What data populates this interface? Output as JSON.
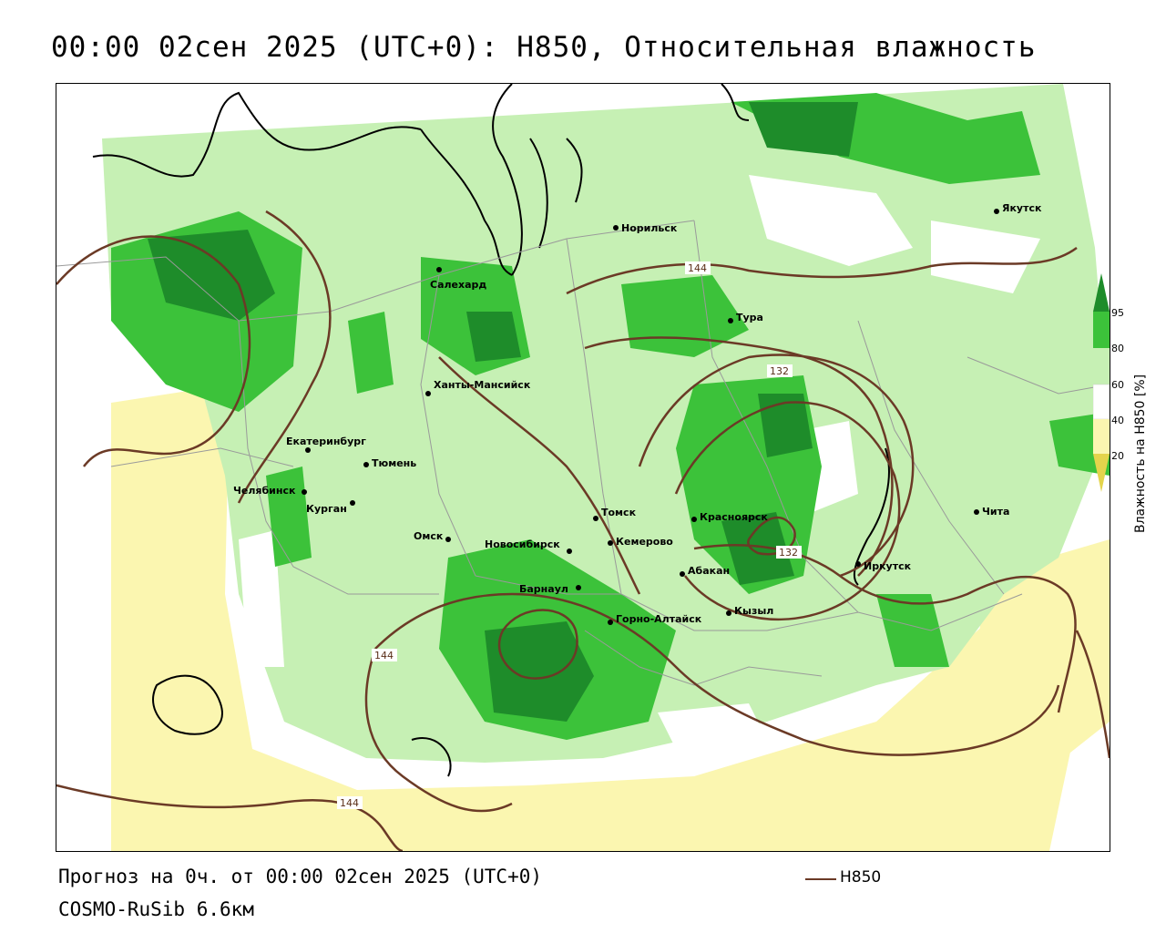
{
  "header": {
    "title": "00:00 02сен 2025 (UTC+0): H850, Относительная влажность"
  },
  "footer": {
    "forecast_line": "Прогноз на 0ч. от 00:00 02сен 2025 (UTC+0)",
    "model_line": "COSMO-RuSib 6.6км",
    "legend_label": "H850"
  },
  "colorbar": {
    "title": "Влажность на H850 [%]",
    "ticks": [
      "95",
      "80",
      "60",
      "40",
      "20"
    ],
    "colors": {
      "c95": "#1e8c2a",
      "c80": "#3cc23a",
      "c60": "#c6f0b4",
      "c40": "#ffffff",
      "c20": "#fbf6b0",
      "c0": "#e4d44c"
    }
  },
  "map": {
    "cities": [
      {
        "name": "Норильск"
      },
      {
        "name": "Якутск"
      },
      {
        "name": "Салехард"
      },
      {
        "name": "Тура"
      },
      {
        "name": "Ханты-Мансийск"
      },
      {
        "name": "Екатеринбург"
      },
      {
        "name": "Тюмень"
      },
      {
        "name": "Челябинск"
      },
      {
        "name": "Курган"
      },
      {
        "name": "Омск"
      },
      {
        "name": "Томск"
      },
      {
        "name": "Новосибирск"
      },
      {
        "name": "Кемерово"
      },
      {
        "name": "Красноярск"
      },
      {
        "name": "Барнаул"
      },
      {
        "name": "Абакан"
      },
      {
        "name": "Горно-Алтайск"
      },
      {
        "name": "Кызыл"
      },
      {
        "name": "Иркутск"
      },
      {
        "name": "Чита"
      }
    ],
    "contour_labels": [
      "144",
      "132",
      "132",
      "144",
      "144"
    ],
    "contour_color": "#6b3a26"
  }
}
